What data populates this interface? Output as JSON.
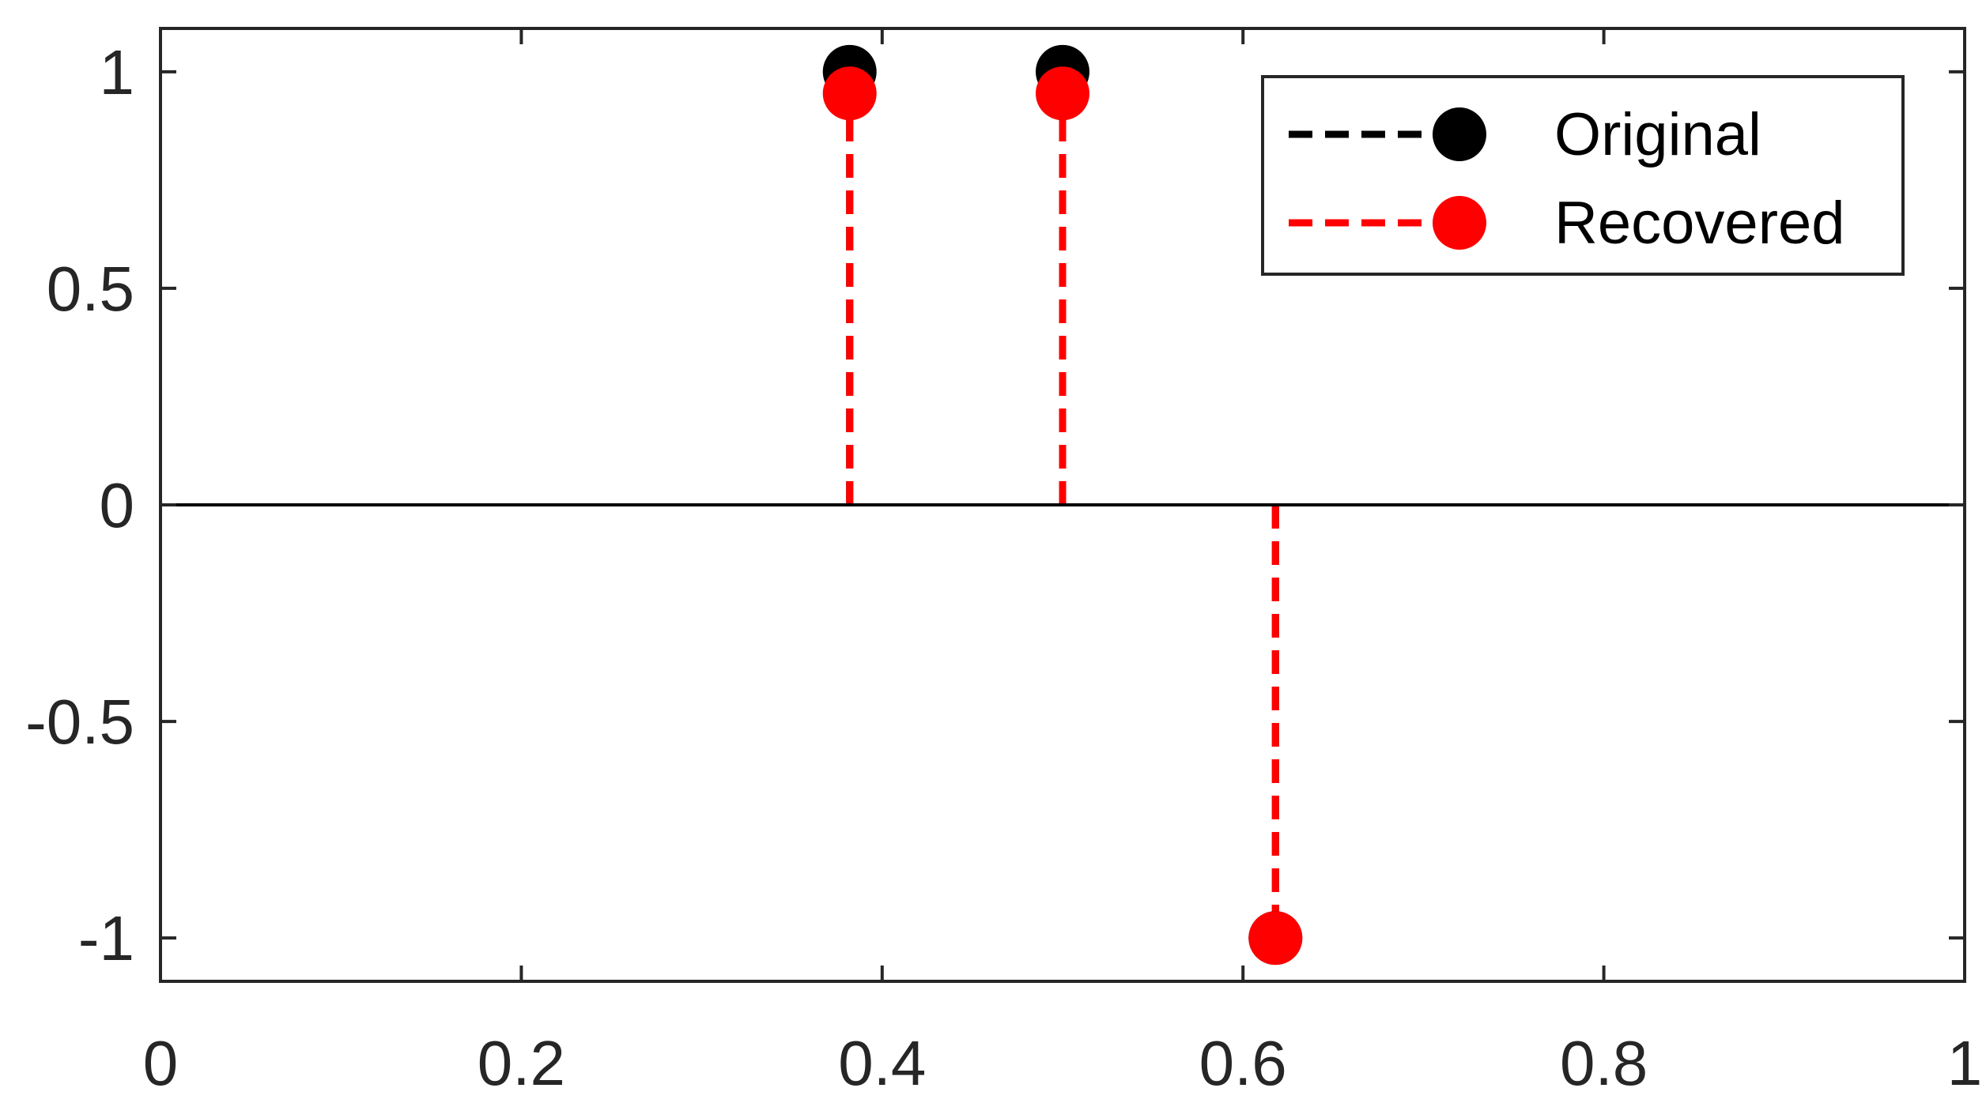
{
  "chart_data": {
    "type": "stem",
    "title": "",
    "xlabel": "",
    "ylabel": "",
    "xlim": [
      0,
      1
    ],
    "ylim": [
      -1.1,
      1.1
    ],
    "xticks": [
      0,
      0.2,
      0.4,
      0.6,
      0.8,
      1
    ],
    "xtick_labels": [
      "0",
      "0.2",
      "0.4",
      "0.6",
      "0.8",
      "1"
    ],
    "yticks": [
      1,
      0.5,
      0,
      -0.5,
      -1
    ],
    "ytick_labels": [
      "1",
      "0.5",
      "0",
      "-0.5",
      "-1"
    ],
    "baseline": 0,
    "grid": false,
    "legend_position": "top-right",
    "series": [
      {
        "name": "Original",
        "color": "#000000",
        "line_style": "dashed",
        "marker": "filled-circle",
        "x": [
          0.382,
          0.5,
          0.618
        ],
        "y": [
          1,
          1,
          -1
        ]
      },
      {
        "name": "Recovered",
        "color": "#ff0000",
        "line_style": "dashed",
        "marker": "filled-circle",
        "x": [
          0.382,
          0.5,
          0.618
        ],
        "y": [
          0.95,
          0.95,
          -1
        ]
      }
    ]
  }
}
